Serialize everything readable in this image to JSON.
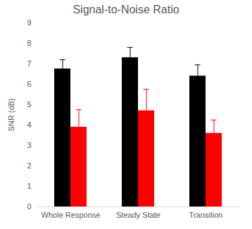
{
  "chart_data": {
    "type": "bar",
    "title": "Signal-to-Noise Ratio",
    "y_label": "SNR (dB)",
    "categories": [
      "Whole Response",
      "Steady State",
      "Transition"
    ],
    "series": [
      {
        "color": "#000000",
        "values": [
          6.75,
          7.3,
          6.4
        ],
        "errors": [
          0.45,
          0.5,
          0.55
        ]
      },
      {
        "color": "#ff0000",
        "values": [
          3.9,
          4.7,
          3.6
        ],
        "errors": [
          0.85,
          1.05,
          0.65
        ]
      }
    ],
    "ylim": [
      0,
      9
    ],
    "yticks": [
      0,
      1,
      2,
      3,
      4,
      5,
      6,
      7,
      8,
      9
    ],
    "grid": false
  }
}
